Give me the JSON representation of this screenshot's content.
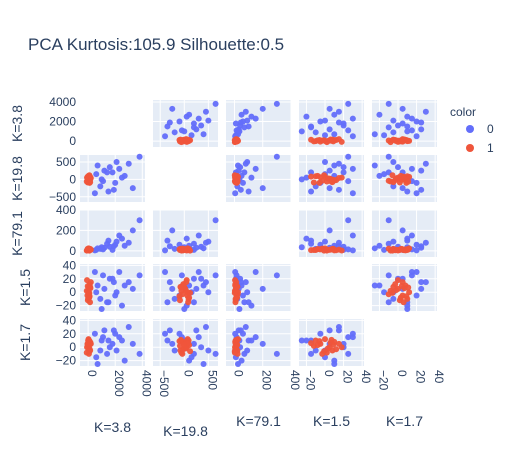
{
  "chart_data": {
    "type": "scatter",
    "title": "PCA Kurtosis:105.9  Silhouette:0.5",
    "dimensions": [
      "K=3.8",
      "K=19.8",
      "K=79.1",
      "K=1.5",
      "K=1.7"
    ],
    "ranges": [
      [
        -600,
        4200
      ],
      [
        -650,
        700
      ],
      [
        -60,
        400
      ],
      [
        -28,
        42
      ],
      [
        -28,
        42
      ]
    ],
    "ticks": [
      {
        "values": [
          0,
          2000,
          4000
        ],
        "labels": [
          "0",
          "2000",
          "4000"
        ]
      },
      {
        "values": [
          -500,
          0,
          500
        ],
        "labels": [
          "−500",
          "0",
          "500"
        ]
      },
      {
        "values": [
          0,
          200,
          400
        ],
        "labels": [
          "0",
          "200",
          "400"
        ]
      },
      {
        "values": [
          -20,
          0,
          20,
          40
        ],
        "labels": [
          "−20",
          "0",
          "20",
          "40"
        ]
      },
      {
        "values": [
          -20,
          0,
          20,
          40
        ],
        "labels": [
          "−20",
          "0",
          "20",
          "40"
        ]
      }
    ],
    "y_tick_labels": [
      {
        "values": [
          0,
          2000,
          4000
        ],
        "labels": [
          "0",
          "2000",
          "4000"
        ]
      },
      {
        "values": [
          -500,
          0,
          500
        ],
        "labels": [
          "−500",
          "0",
          "500"
        ]
      },
      {
        "values": [
          0,
          200,
          400
        ],
        "labels": [
          "0",
          "200",
          "400"
        ]
      },
      {
        "values": [
          -20,
          0,
          20,
          40
        ],
        "labels": [
          "−20",
          "0",
          "20",
          "40"
        ]
      },
      {
        "values": [
          -20,
          0,
          20,
          40
        ],
        "labels": [
          "−20",
          "0",
          "20",
          "40"
        ]
      }
    ],
    "legend": {
      "title": "color",
      "placement": "right",
      "items": [
        {
          "label": "0",
          "color": "#636efa"
        },
        {
          "label": "1",
          "color": "#ef553b"
        }
      ]
    },
    "series": [
      {
        "name": "0",
        "color": "#636efa",
        "points": [
          [
            1800,
            200,
            10,
            20,
            5
          ],
          [
            3800,
            650,
            300,
            25,
            -10
          ],
          [
            2300,
            300,
            150,
            30,
            15
          ],
          [
            1500,
            -350,
            100,
            -15,
            10
          ],
          [
            2700,
            100,
            50,
            10,
            -20
          ],
          [
            1200,
            250,
            30,
            5,
            25
          ],
          [
            900,
            -200,
            20,
            -10,
            -5
          ],
          [
            3000,
            450,
            80,
            15,
            30
          ],
          [
            600,
            150,
            10,
            0,
            -15
          ],
          [
            2000,
            -100,
            60,
            -5,
            20
          ],
          [
            1600,
            350,
            40,
            20,
            0
          ],
          [
            1100,
            -50,
            15,
            25,
            15
          ],
          [
            2500,
            50,
            120,
            -20,
            10
          ],
          [
            700,
            400,
            25,
            10,
            -25
          ],
          [
            3300,
            -250,
            200,
            5,
            5
          ],
          [
            1400,
            200,
            70,
            -15,
            -10
          ],
          [
            500,
            -400,
            5,
            30,
            20
          ],
          [
            2100,
            500,
            90,
            0,
            -5
          ],
          [
            1000,
            0,
            35,
            -25,
            10
          ],
          [
            1900,
            -300,
            45,
            15,
            25
          ]
        ]
      },
      {
        "name": "1",
        "color": "#ef553b",
        "points": [
          [
            50,
            20,
            10,
            5,
            0
          ],
          [
            100,
            -30,
            5,
            10,
            8
          ],
          [
            -50,
            60,
            15,
            -5,
            5
          ],
          [
            150,
            -80,
            20,
            8,
            -5
          ],
          [
            0,
            90,
            8,
            -10,
            10
          ],
          [
            200,
            40,
            12,
            15,
            5
          ],
          [
            -100,
            -60,
            3,
            2,
            -8
          ],
          [
            80,
            100,
            18,
            -8,
            3
          ],
          [
            120,
            -20,
            6,
            12,
            -3
          ],
          [
            30,
            70,
            25,
            0,
            12
          ],
          [
            -20,
            -90,
            9,
            -12,
            2
          ],
          [
            170,
            10,
            14,
            6,
            7
          ],
          [
            60,
            -40,
            22,
            -3,
            -10
          ],
          [
            -80,
            50,
            4,
            18,
            0
          ],
          [
            110,
            -100,
            16,
            -6,
            9
          ],
          [
            10,
            30,
            11,
            3,
            -2
          ],
          [
            140,
            80,
            7,
            -15,
            6
          ],
          [
            -30,
            -10,
            19,
            9,
            4
          ],
          [
            90,
            120,
            2,
            -1,
            -6
          ],
          [
            40,
            -70,
            13,
            7,
            11
          ]
        ]
      }
    ]
  }
}
